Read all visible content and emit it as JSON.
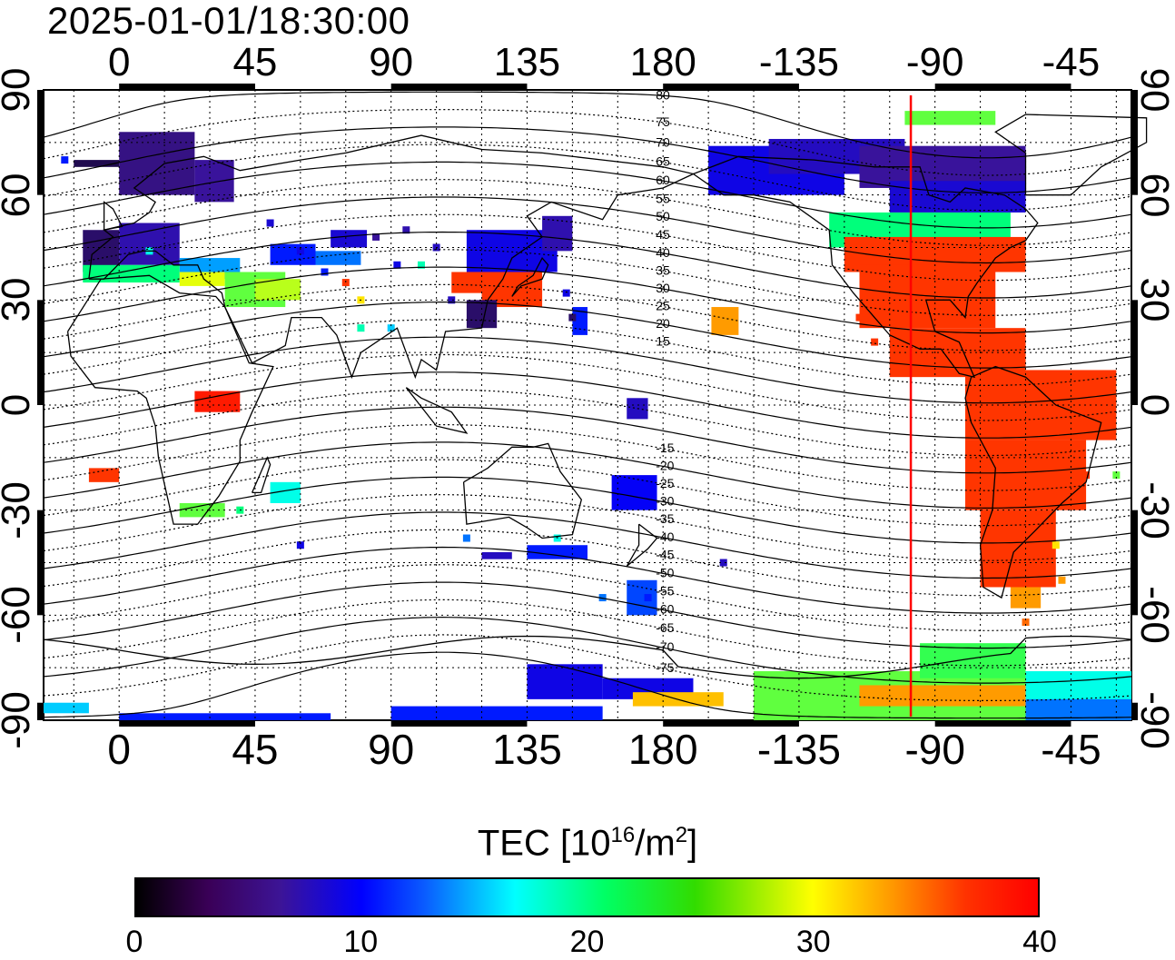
{
  "title": "2025-01-01/18:30:00",
  "map": {
    "projection": "equirectangular",
    "center_longitude": 150,
    "lon_range": [
      -25,
      335
    ],
    "lat_range": [
      -90,
      90
    ],
    "grid": true,
    "coastlines": true,
    "geomagnetic_latitude_contours": true,
    "marked_meridian_longitude": -98,
    "marked_meridian_color": "#ff0000",
    "top_lon_labels": [
      "0",
      "45",
      "90",
      "135",
      "180",
      "-135",
      "-90",
      "-45"
    ],
    "bottom_lon_labels": [
      "0",
      "45",
      "90",
      "135",
      "180",
      "-135",
      "-90",
      "-45"
    ],
    "left_lat_labels": [
      "90",
      "60",
      "30",
      "0",
      "-30",
      "-60",
      "-90"
    ],
    "right_lat_labels": [
      "90",
      "60",
      "30",
      "0",
      "-30",
      "-60",
      "-90"
    ],
    "contour_labels": [
      "80",
      "75",
      "70",
      "65",
      "60",
      "55",
      "50",
      "45",
      "40",
      "35",
      "30",
      "25",
      "20",
      "15",
      "-15",
      "-20",
      "-25",
      "-30",
      "-35",
      "-40",
      "-45",
      "-50",
      "-55",
      "-60",
      "-65",
      "-70",
      "-75"
    ]
  },
  "colorbar": {
    "label_main": "TEC  [10",
    "label_exp": "16",
    "label_unit": "/m",
    "label_exp2": "2",
    "label_end": "]",
    "min": 0,
    "max": 40,
    "ticks": [
      "0",
      "10",
      "20",
      "30",
      "40"
    ],
    "colors": [
      "#000000",
      "#3c1496",
      "#0000ff",
      "#00ffff",
      "#00ff64",
      "#ffff00",
      "#ff9600",
      "#ff0000"
    ]
  }
}
